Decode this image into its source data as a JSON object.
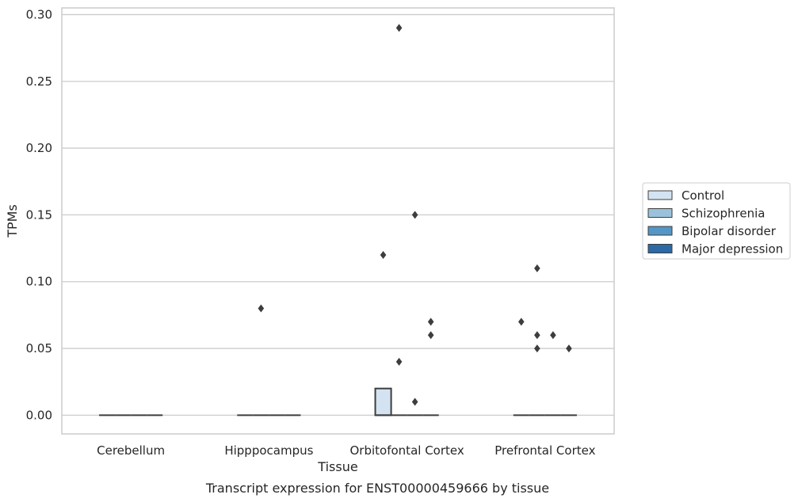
{
  "chart_data": {
    "type": "box",
    "title": "",
    "caption": "Transcript expression for ENST00000459666 by tissue",
    "xlabel": "Tissue",
    "ylabel": "TPMs",
    "ylim": [
      -0.014,
      0.305
    ],
    "yticks": [
      0.0,
      0.05,
      0.1,
      0.15,
      0.2,
      0.25,
      0.3
    ],
    "ytick_labels": [
      "0.00",
      "0.05",
      "0.10",
      "0.15",
      "0.20",
      "0.25",
      "0.30"
    ],
    "grid": true,
    "legend_position": "right",
    "categories": [
      "Cerebellum",
      "Hipppocampus",
      "Orbitofontal Cortex",
      "Prefrontal Cortex"
    ],
    "series": [
      {
        "name": "Control",
        "color": "#d4e3f2",
        "boxes": [
          {
            "q1": 0,
            "median": 0,
            "q3": 0,
            "whisker_low": 0,
            "whisker_high": 0,
            "outliers": []
          },
          {
            "q1": 0,
            "median": 0,
            "q3": 0,
            "whisker_low": 0,
            "whisker_high": 0,
            "outliers": []
          },
          {
            "q1": 0,
            "median": 0,
            "q3": 0.02,
            "whisker_low": 0,
            "whisker_high": 0.02,
            "outliers": [
              0.12
            ]
          },
          {
            "q1": 0,
            "median": 0,
            "q3": 0,
            "whisker_low": 0,
            "whisker_high": 0,
            "outliers": [
              0.07
            ]
          }
        ]
      },
      {
        "name": "Schizophrenia",
        "color": "#9bc2dd",
        "boxes": [
          {
            "q1": 0,
            "median": 0,
            "q3": 0,
            "whisker_low": 0,
            "whisker_high": 0,
            "outliers": []
          },
          {
            "q1": 0,
            "median": 0,
            "q3": 0,
            "whisker_low": 0,
            "whisker_high": 0,
            "outliers": [
              0.08
            ]
          },
          {
            "q1": 0,
            "median": 0,
            "q3": 0,
            "whisker_low": 0,
            "whisker_high": 0,
            "outliers": [
              0.29,
              0.04
            ]
          },
          {
            "q1": 0,
            "median": 0,
            "q3": 0,
            "whisker_low": 0,
            "whisker_high": 0,
            "outliers": [
              0.11,
              0.06,
              0.05
            ]
          }
        ]
      },
      {
        "name": "Bipolar disorder",
        "color": "#5496c6",
        "boxes": [
          {
            "q1": 0,
            "median": 0,
            "q3": 0,
            "whisker_low": 0,
            "whisker_high": 0,
            "outliers": []
          },
          {
            "q1": 0,
            "median": 0,
            "q3": 0,
            "whisker_low": 0,
            "whisker_high": 0,
            "outliers": []
          },
          {
            "q1": 0,
            "median": 0,
            "q3": 0,
            "whisker_low": 0,
            "whisker_high": 0,
            "outliers": [
              0.15,
              0.01
            ]
          },
          {
            "q1": 0,
            "median": 0,
            "q3": 0,
            "whisker_low": 0,
            "whisker_high": 0,
            "outliers": [
              0.06
            ]
          }
        ]
      },
      {
        "name": "Major depression",
        "color": "#2b6aa6",
        "boxes": [
          {
            "q1": 0,
            "median": 0,
            "q3": 0,
            "whisker_low": 0,
            "whisker_high": 0,
            "outliers": []
          },
          {
            "q1": 0,
            "median": 0,
            "q3": 0,
            "whisker_low": 0,
            "whisker_high": 0,
            "outliers": []
          },
          {
            "q1": 0,
            "median": 0,
            "q3": 0,
            "whisker_low": 0,
            "whisker_high": 0,
            "outliers": [
              0.07,
              0.06
            ]
          },
          {
            "q1": 0,
            "median": 0,
            "q3": 0,
            "whisker_low": 0,
            "whisker_high": 0,
            "outliers": [
              0.05
            ]
          }
        ]
      }
    ]
  }
}
